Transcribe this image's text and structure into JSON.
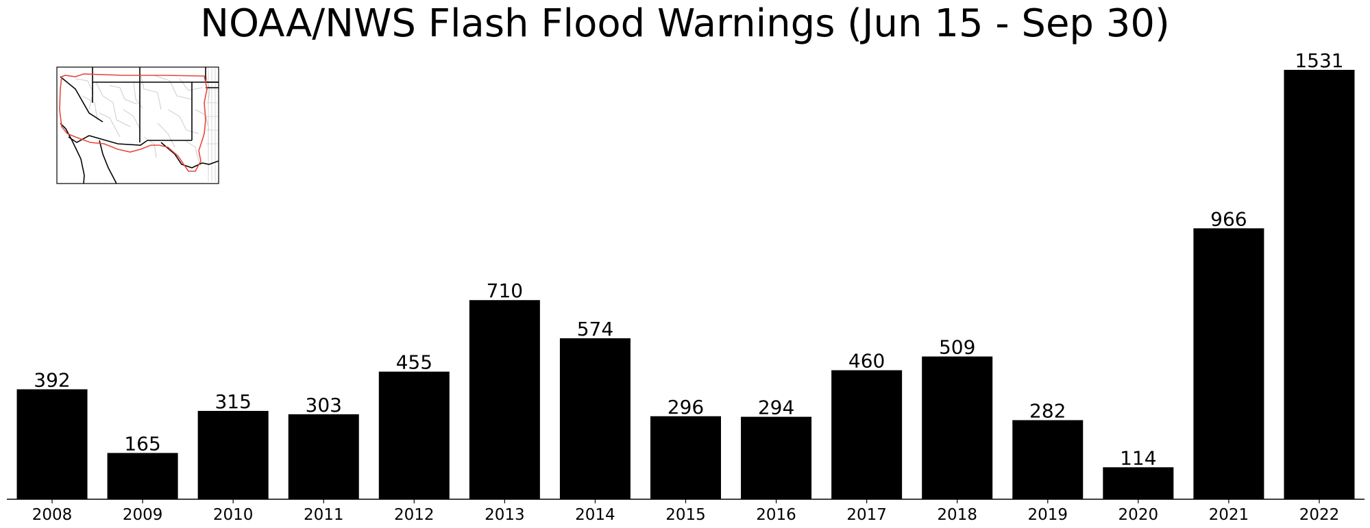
{
  "chart_data": {
    "type": "bar",
    "title": "NOAA/NWS Flash Flood Warnings (Jun 15 - Sep 30)",
    "xlabel": "",
    "ylabel": "",
    "categories": [
      "2008",
      "2009",
      "2010",
      "2011",
      "2012",
      "2013",
      "2014",
      "2015",
      "2016",
      "2017",
      "2018",
      "2019",
      "2020",
      "2021",
      "2022"
    ],
    "values": [
      392,
      165,
      315,
      303,
      455,
      710,
      574,
      296,
      294,
      460,
      509,
      282,
      114,
      966,
      1531
    ],
    "ylim": [
      0,
      1531
    ],
    "grid": false,
    "legend": "none",
    "colors": {
      "bar": "#000000",
      "map_border_highlight": "#e8453c",
      "map_lines": "#c8c8c8"
    },
    "inset": {
      "icon": "southwest-us-region-map-icon"
    }
  }
}
